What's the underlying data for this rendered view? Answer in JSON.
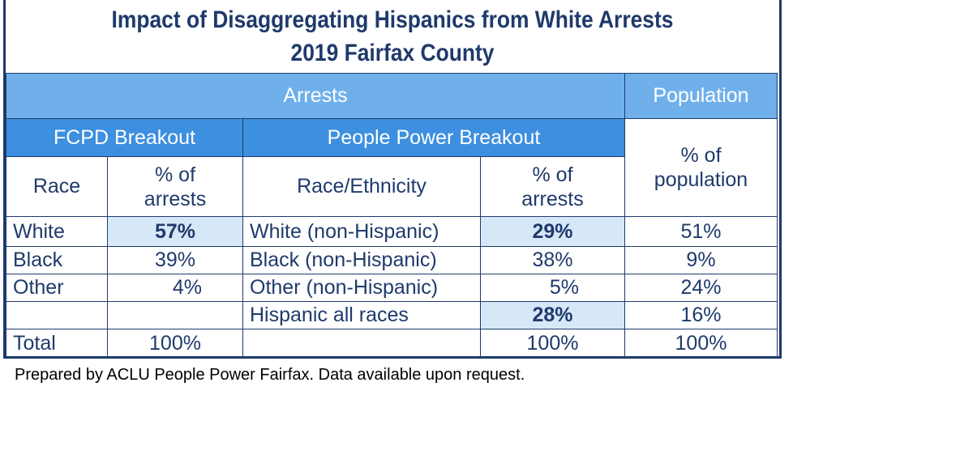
{
  "title": {
    "line1": "Impact of Disaggregating Hispanics from White Arrests",
    "line2": "2019 Fairfax County"
  },
  "headers": {
    "arrests": "Arrests",
    "population": "Population",
    "fcpd_breakout": "FCPD Breakout",
    "pp_breakout": "People Power Breakout",
    "race": "Race",
    "pct_arrests_1": "% of",
    "pct_arrests_2": "arrests",
    "race_ethnicity": "Race/Ethnicity",
    "pct_pop_1": "% of",
    "pct_pop_2": "population"
  },
  "chart_data": {
    "type": "table",
    "title": "Impact of Disaggregating Hispanics from White Arrests 2019 Fairfax County",
    "columns": [
      "Race",
      "% of arrests",
      "Race/Ethnicity",
      "% of arrests",
      "% of population"
    ],
    "rows": [
      {
        "race": "White",
        "fcpd_pct": "57%",
        "ethnicity": "White (non-Hispanic)",
        "pp_pct": "29%",
        "pop_pct": "51%"
      },
      {
        "race": "Black",
        "fcpd_pct": "39%",
        "ethnicity": "Black (non-Hispanic)",
        "pp_pct": "38%",
        "pop_pct": "9%"
      },
      {
        "race": "Other",
        "fcpd_pct": "4%",
        "ethnicity": "Other (non-Hispanic)",
        "pp_pct": "5%",
        "pop_pct": "24%"
      },
      {
        "race": "",
        "fcpd_pct": "",
        "ethnicity": "Hispanic all races",
        "pp_pct": "28%",
        "pop_pct": "16%"
      },
      {
        "race": "Total",
        "fcpd_pct": "100%",
        "ethnicity": "",
        "pp_pct": "100%",
        "pop_pct": "100%"
      }
    ]
  },
  "footnote": "Prepared by ACLU People Power Fairfax. Data available upon request.",
  "colors": {
    "title": "#1f3a6b",
    "header_band": "#6fb0eb",
    "header_band_dark": "#3d8fe0",
    "highlight": "#d6e8f8",
    "text": "#1f3a6b"
  }
}
